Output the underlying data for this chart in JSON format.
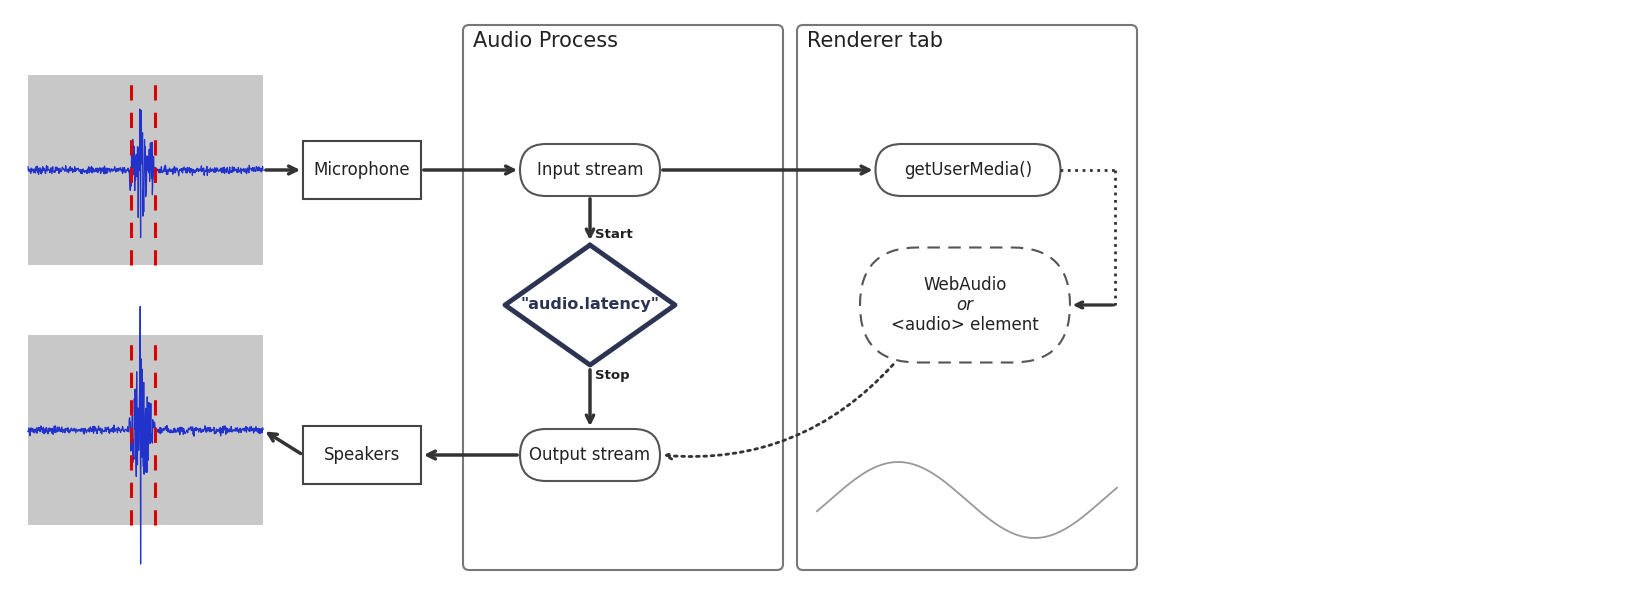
{
  "bg_color": "#ffffff",
  "fig_width": 16.4,
  "fig_height": 6.0,
  "dpi": 100,
  "title_audio_process": "Audio Process",
  "title_renderer_tab": "Renderer tab",
  "label_microphone": "Microphone",
  "label_speakers": "Speakers",
  "label_input_stream": "Input stream",
  "label_output_stream": "Output stream",
  "label_audio_latency": "\"audio.latency\"",
  "label_get_user_media": "getUserMedia()",
  "label_web_audio_1": "WebAudio",
  "label_web_audio_2": "or",
  "label_web_audio_3": "<audio> element",
  "label_start": "Start",
  "label_stop": "Stop",
  "waveform_color": "#2233cc",
  "waveform_bg": "#c8c8c8",
  "red_line_color": "#dd0000",
  "box_edge_color": "#444444",
  "diamond_color": "#2d3352",
  "section_border_color": "#777777",
  "arrow_color": "#333333",
  "wave_deco_color": "#999999",
  "text_color": "#222222",
  "dim_lw": 1.5,
  "arrow_lw": 2.5,
  "diamond_lw": 3.5
}
